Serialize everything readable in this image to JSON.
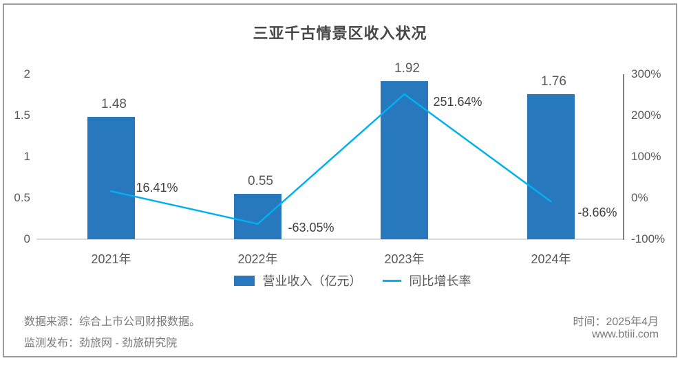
{
  "page": {
    "title": "三亚千古情景区收入状况",
    "footer": {
      "source_line": "数据来源：综合上市公司财报数据。",
      "publisher_line": "监测发布：劲旅网 - 劲旅研究院",
      "time_line": "时间：2025年4月",
      "website": "www.btiii.com"
    }
  },
  "chart_data": {
    "type": "bar",
    "title": "三亚千古情景区收入状况",
    "categories": [
      "2021年",
      "2022年",
      "2023年",
      "2024年"
    ],
    "series": [
      {
        "name": "营业收入（亿元）",
        "type": "bar",
        "axis": "left",
        "values": [
          1.48,
          0.55,
          1.92,
          1.76
        ],
        "labels": [
          "1.48",
          "0.55",
          "1.92",
          "1.76"
        ]
      },
      {
        "name": "同比增长率",
        "type": "line",
        "axis": "right",
        "values": [
          16.41,
          -63.05,
          251.64,
          -8.66
        ],
        "labels": [
          "16.41%",
          "-63.05%",
          "251.64%",
          "-8.66%"
        ]
      }
    ],
    "left_axis": {
      "range": [
        0,
        2
      ],
      "ticks": [
        0,
        0.5,
        1,
        1.5,
        2
      ],
      "tick_labels": [
        "0",
        "0.5",
        "1",
        "1.5",
        "2"
      ]
    },
    "right_axis": {
      "range": [
        -100,
        300
      ],
      "ticks": [
        -100,
        0,
        100,
        200,
        300
      ],
      "tick_labels": [
        "-100%",
        "0%",
        "100%",
        "200%",
        "300%"
      ]
    },
    "legend_position": "bottom",
    "grid": "baseline-only"
  },
  "colors": {
    "bar": "#2878BD",
    "line": "#00B0F0",
    "baseline": "#D9D9D9",
    "right_axis_line": "#808080",
    "border": "#9B9B9B"
  }
}
